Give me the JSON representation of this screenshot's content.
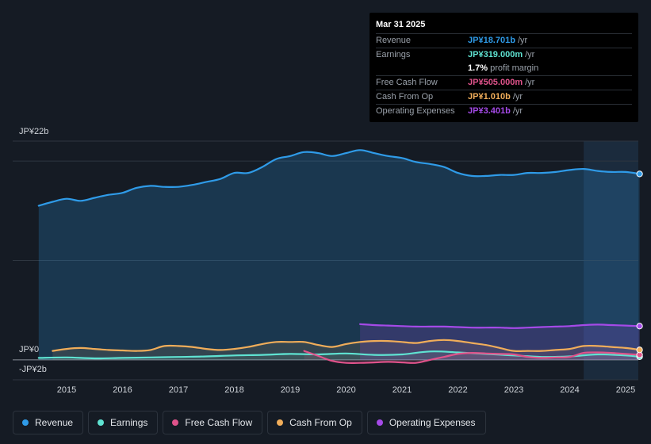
{
  "tooltip": {
    "date": "Mar 31 2025",
    "rows": [
      {
        "label": "Revenue",
        "value": "JP¥18.701b",
        "unit": "/yr",
        "color": "#2f9be8"
      },
      {
        "label": "Earnings",
        "value": "JP¥319.000m",
        "unit": "/yr",
        "color": "#5fe3d2"
      },
      {
        "label": "",
        "value": "1.7%",
        "unit": "profit margin",
        "color": "#ffffff"
      },
      {
        "label": "Free Cash Flow",
        "value": "JP¥505.000m",
        "unit": "/yr",
        "color": "#e0538b"
      },
      {
        "label": "Cash From Op",
        "value": "JP¥1.010b",
        "unit": "/yr",
        "color": "#f0ad5a"
      },
      {
        "label": "Operating Expenses",
        "value": "JP¥3.401b",
        "unit": "/yr",
        "color": "#a54ae8"
      }
    ]
  },
  "chart_data": {
    "type": "area",
    "title": "",
    "unit": "JP¥ billions",
    "ylim": [
      -2,
      22
    ],
    "y_top_label": "JP¥22b",
    "y_zero_label": "JP¥0",
    "y_bottom_label": "-JP¥2b",
    "x_ticks": [
      "2015",
      "2016",
      "2017",
      "2018",
      "2019",
      "2020",
      "2021",
      "2022",
      "2023",
      "2024",
      "2025"
    ],
    "x_tick_values": [
      2015.0,
      2016.0,
      2017.0,
      2018.0,
      2019.0,
      2020.0,
      2021.0,
      2022.0,
      2023.0,
      2024.0,
      2025.0
    ],
    "highlight_from": 2024.25,
    "series": [
      {
        "name": "Revenue",
        "color": "#2f9be8",
        "x": [
          2014.5,
          2014.75,
          2015.0,
          2015.25,
          2015.5,
          2015.75,
          2016.0,
          2016.25,
          2016.5,
          2016.75,
          2017.0,
          2017.25,
          2017.5,
          2017.75,
          2018.0,
          2018.25,
          2018.5,
          2018.75,
          2019.0,
          2019.25,
          2019.5,
          2019.75,
          2020.0,
          2020.25,
          2020.5,
          2020.75,
          2021.0,
          2021.25,
          2021.5,
          2021.75,
          2022.0,
          2022.25,
          2022.5,
          2022.75,
          2023.0,
          2023.25,
          2023.5,
          2023.75,
          2024.0,
          2024.25,
          2024.5,
          2024.75,
          2025.0,
          2025.25
        ],
        "values": [
          15.5,
          15.9,
          16.2,
          16.0,
          16.3,
          16.6,
          16.8,
          17.3,
          17.5,
          17.4,
          17.4,
          17.6,
          17.9,
          18.2,
          18.8,
          18.8,
          19.4,
          20.2,
          20.5,
          20.9,
          20.8,
          20.5,
          20.8,
          21.1,
          20.8,
          20.5,
          20.3,
          19.9,
          19.7,
          19.4,
          18.8,
          18.5,
          18.5,
          18.6,
          18.6,
          18.8,
          18.8,
          18.9,
          19.1,
          19.2,
          19.0,
          18.9,
          18.9,
          18.7
        ]
      },
      {
        "name": "Earnings",
        "color": "#5fe3d2",
        "x": [
          2014.5,
          2015.0,
          2015.5,
          2016.0,
          2016.5,
          2017.0,
          2017.5,
          2018.0,
          2018.5,
          2019.0,
          2019.5,
          2020.0,
          2020.5,
          2021.0,
          2021.5,
          2022.0,
          2022.5,
          2023.0,
          2023.5,
          2024.0,
          2024.5,
          2025.0,
          2025.25
        ],
        "values": [
          0.2,
          0.25,
          0.15,
          0.2,
          0.25,
          0.3,
          0.35,
          0.45,
          0.5,
          0.6,
          0.55,
          0.65,
          0.5,
          0.55,
          0.85,
          0.75,
          0.6,
          0.45,
          0.3,
          0.35,
          0.55,
          0.45,
          0.32
        ]
      },
      {
        "name": "Free Cash Flow",
        "color": "#e0538b",
        "x": [
          2019.25,
          2019.5,
          2019.75,
          2020.0,
          2020.25,
          2020.5,
          2020.75,
          2021.0,
          2021.25,
          2021.5,
          2021.75,
          2022.0,
          2022.25,
          2022.5,
          2022.75,
          2023.0,
          2023.25,
          2023.5,
          2023.75,
          2024.0,
          2024.25,
          2024.5,
          2024.75,
          2025.0,
          2025.25
        ],
        "values": [
          0.9,
          0.4,
          -0.1,
          -0.3,
          -0.3,
          -0.25,
          -0.2,
          -0.25,
          -0.3,
          0.0,
          0.3,
          0.6,
          0.7,
          0.65,
          0.6,
          0.55,
          0.3,
          0.2,
          0.25,
          0.3,
          0.7,
          0.75,
          0.7,
          0.6,
          0.51
        ]
      },
      {
        "name": "Cash From Op",
        "color": "#f0ad5a",
        "x": [
          2014.75,
          2015.0,
          2015.25,
          2015.5,
          2015.75,
          2016.0,
          2016.25,
          2016.5,
          2016.75,
          2017.0,
          2017.25,
          2017.5,
          2017.75,
          2018.0,
          2018.25,
          2018.5,
          2018.75,
          2019.0,
          2019.25,
          2019.5,
          2019.75,
          2020.0,
          2020.25,
          2020.5,
          2020.75,
          2021.0,
          2021.25,
          2021.5,
          2021.75,
          2022.0,
          2022.25,
          2022.5,
          2022.75,
          2023.0,
          2023.25,
          2023.5,
          2023.75,
          2024.0,
          2024.25,
          2024.5,
          2024.75,
          2025.0,
          2025.25
        ],
        "values": [
          0.9,
          1.1,
          1.2,
          1.1,
          1.0,
          0.95,
          0.9,
          1.0,
          1.4,
          1.4,
          1.3,
          1.1,
          1.0,
          1.1,
          1.3,
          1.6,
          1.8,
          1.8,
          1.8,
          1.5,
          1.3,
          1.6,
          1.8,
          1.9,
          1.9,
          1.8,
          1.7,
          1.9,
          2.0,
          1.9,
          1.7,
          1.5,
          1.2,
          0.9,
          0.9,
          0.9,
          1.0,
          1.1,
          1.4,
          1.4,
          1.3,
          1.2,
          1.01
        ]
      },
      {
        "name": "Operating Expenses",
        "color": "#a54ae8",
        "x": [
          2020.25,
          2020.5,
          2020.75,
          2021.0,
          2021.25,
          2021.5,
          2021.75,
          2022.0,
          2022.25,
          2022.5,
          2022.75,
          2023.0,
          2023.25,
          2023.5,
          2023.75,
          2024.0,
          2024.25,
          2024.5,
          2024.75,
          2025.0,
          2025.25
        ],
        "values": [
          3.6,
          3.5,
          3.45,
          3.4,
          3.35,
          3.35,
          3.35,
          3.3,
          3.25,
          3.25,
          3.25,
          3.2,
          3.25,
          3.3,
          3.35,
          3.4,
          3.5,
          3.55,
          3.5,
          3.45,
          3.4
        ]
      }
    ]
  }
}
